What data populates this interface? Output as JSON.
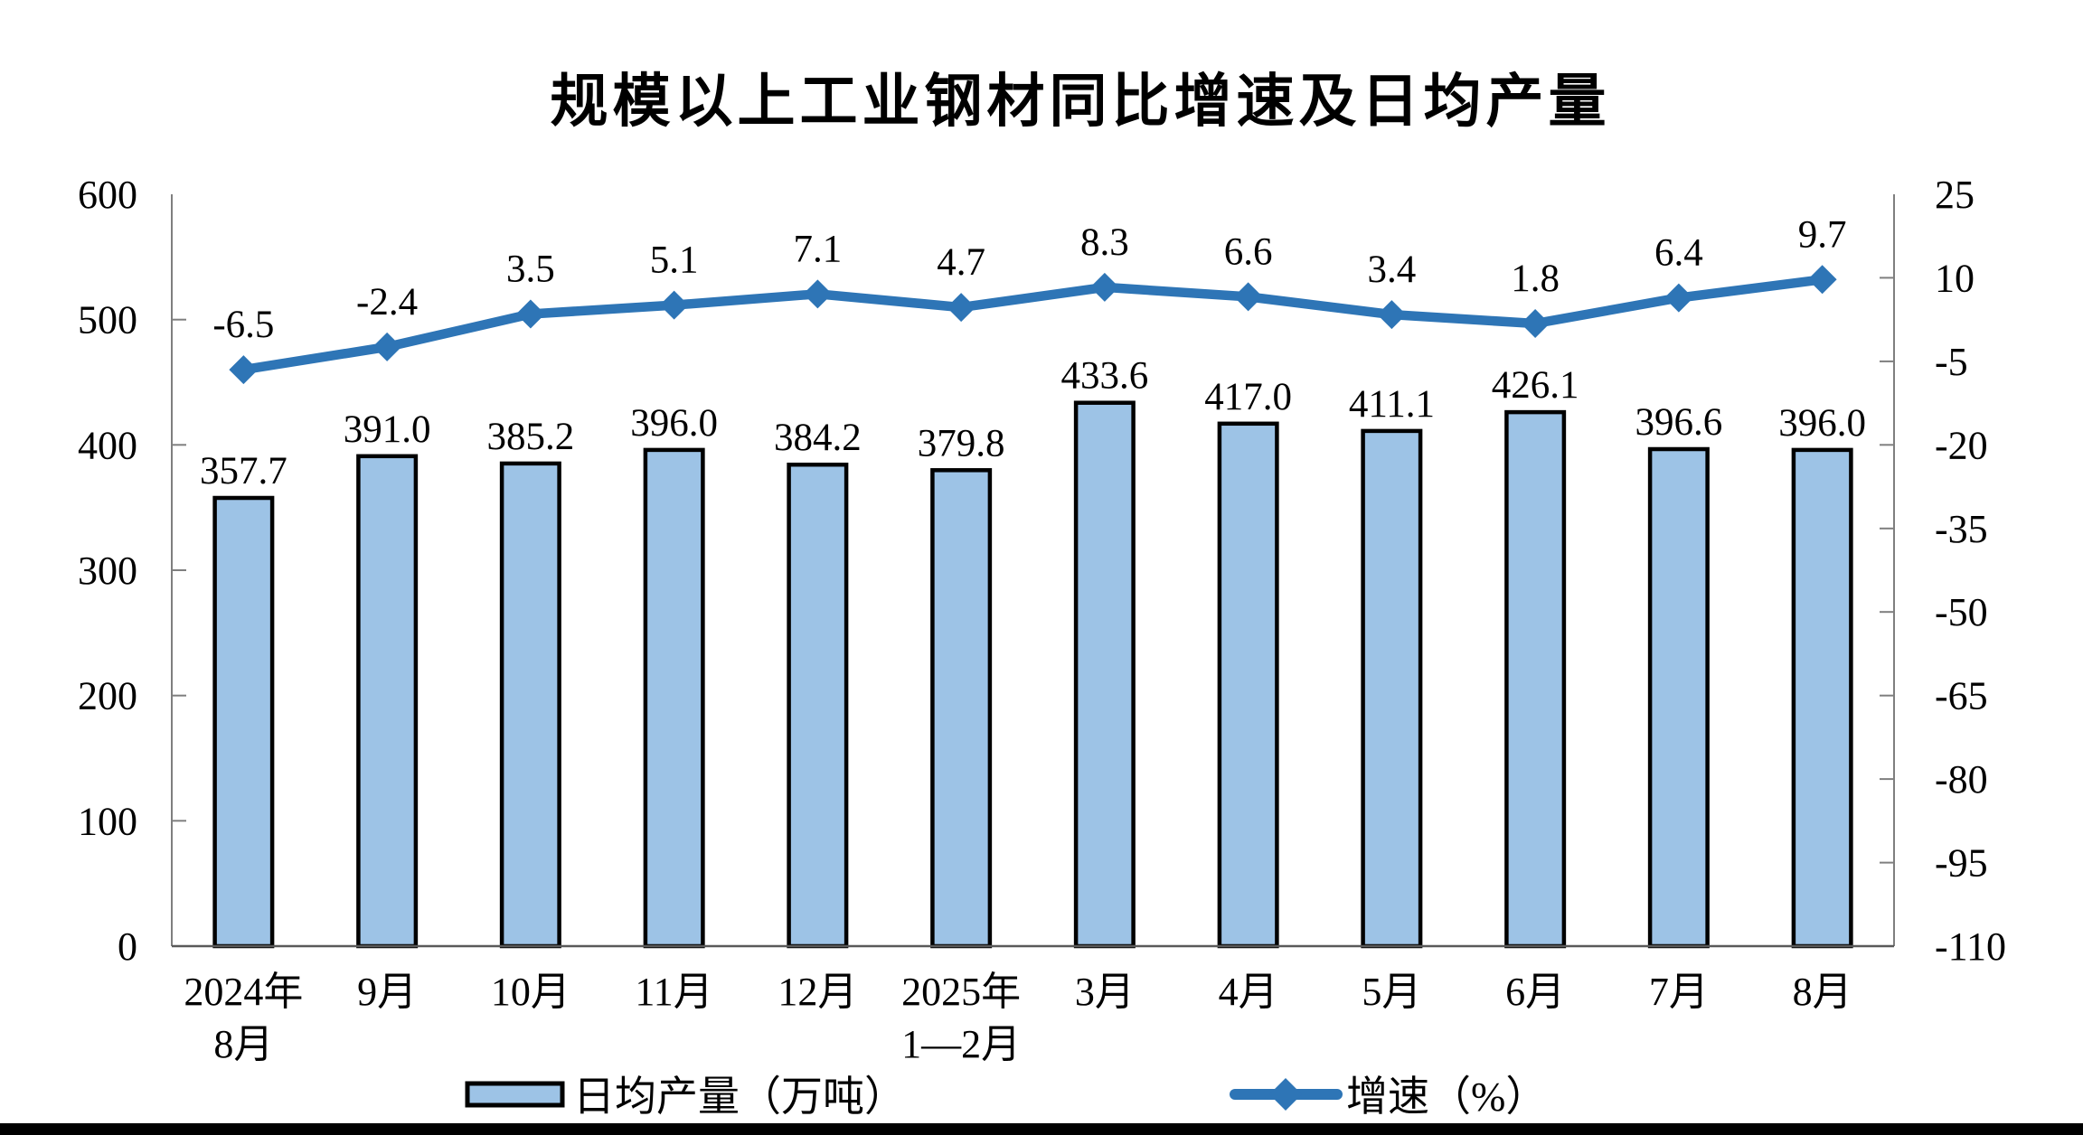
{
  "title": "规模以上工业钢材同比增速及日均产量",
  "chart_data": {
    "type": "bar+line combo",
    "title": "规模以上工业钢材同比增速及日均产量",
    "categories": [
      [
        "2024年",
        "8月"
      ],
      [
        "9月"
      ],
      [
        "10月"
      ],
      [
        "11月"
      ],
      [
        "12月"
      ],
      [
        "2025年",
        "1—2月"
      ],
      [
        "3月"
      ],
      [
        "4月"
      ],
      [
        "5月"
      ],
      [
        "6月"
      ],
      [
        "7月"
      ],
      [
        "8月"
      ]
    ],
    "series": [
      {
        "name": "日均产量（万吨）",
        "type": "bar",
        "axis": "left",
        "values": [
          357.7,
          391.0,
          385.2,
          396.0,
          384.2,
          379.8,
          433.6,
          417.0,
          411.1,
          426.1,
          396.6,
          396.0
        ],
        "labels": [
          "357.7",
          "391.0",
          "385.2",
          "396.0",
          "384.2",
          "379.8",
          "433.6",
          "417.0",
          "411.1",
          "426.1",
          "396.6",
          "396.0"
        ]
      },
      {
        "name": "增速（%）",
        "type": "line",
        "axis": "right",
        "values": [
          -6.5,
          -2.4,
          3.5,
          5.1,
          7.1,
          4.7,
          8.3,
          6.6,
          3.4,
          1.8,
          6.4,
          9.7
        ],
        "labels": [
          "-6.5",
          "-2.4",
          "3.5",
          "5.1",
          "7.1",
          "4.7",
          "8.3",
          "6.6",
          "3.4",
          "1.8",
          "6.4",
          "9.7"
        ]
      }
    ],
    "left_axis": {
      "min": 0,
      "max": 600,
      "tick_step": 100,
      "ticks": [
        "600",
        "500",
        "400",
        "300",
        "200",
        "100",
        "0"
      ]
    },
    "right_axis": {
      "min": -110,
      "max": 25,
      "tick_step": 15,
      "ticks": [
        "25",
        "10",
        "-5",
        "-20",
        "-35",
        "-50",
        "-65",
        "-80",
        "-95",
        "-110"
      ]
    },
    "legend": {
      "position": "bottom",
      "entries": [
        "日均产量（万吨）",
        "增速（%）"
      ]
    },
    "grid": "off",
    "colors": {
      "bar_fill": "#9DC3E6",
      "bar_border": "#000000",
      "line": "#2E75B6",
      "axis": "#7F7F7F",
      "baseline": "#595959",
      "text": "#000000",
      "bottom_strip": "#000000"
    }
  }
}
